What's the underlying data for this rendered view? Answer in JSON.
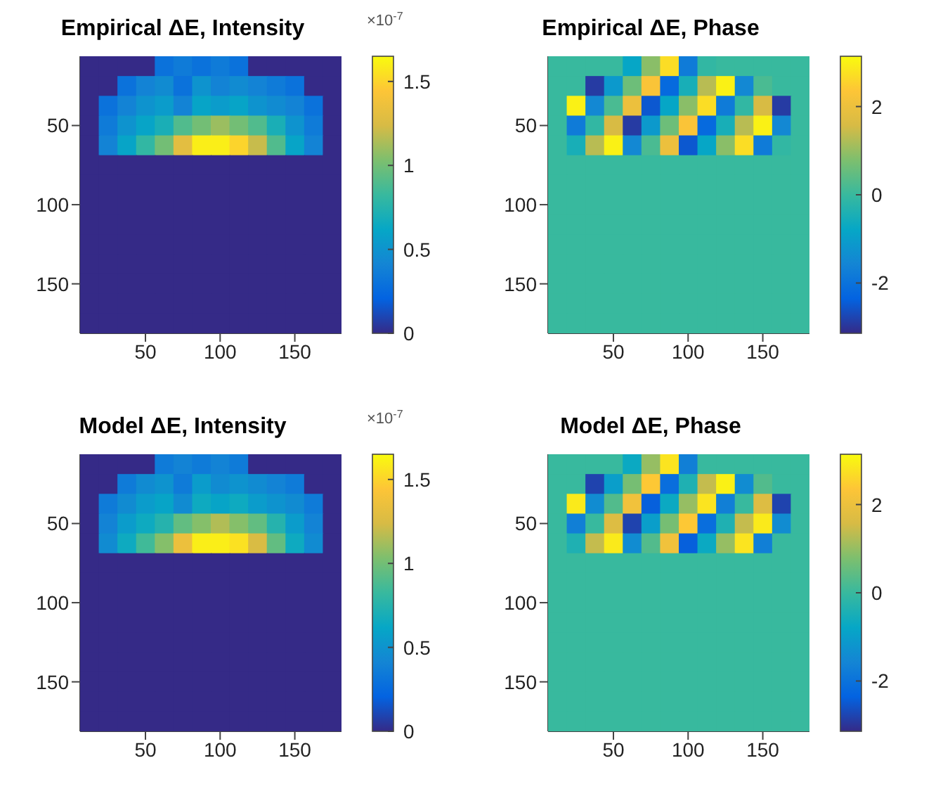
{
  "chart_data": [
    {
      "type": "heatmap",
      "title": "Empirical ΔE, Intensity",
      "clabel": "×10$^{-7}$",
      "categories": [
        null,
        null,
        null,
        "50",
        null,
        null,
        null,
        "100",
        null,
        null,
        null,
        "150",
        null,
        null
      ],
      "y_categories": [
        null,
        null,
        null,
        "50",
        null,
        null,
        null,
        "100",
        null,
        null,
        null,
        "150",
        null,
        null
      ],
      "clim": [
        0,
        1.65
      ],
      "cticks": [
        0,
        0.5,
        1,
        1.5
      ],
      "cells": [
        [
          0,
          0,
          0,
          0,
          0.3,
          0.35,
          0.3,
          0.35,
          0.3,
          0,
          0,
          0,
          0,
          0
        ],
        [
          0,
          0,
          0.3,
          0.4,
          0.45,
          0.3,
          0.5,
          0.4,
          0.45,
          0.4,
          0.35,
          0.3,
          0,
          0
        ],
        [
          0,
          0.3,
          0.4,
          0.5,
          0.55,
          0.4,
          0.6,
          0.55,
          0.6,
          0.5,
          0.45,
          0.4,
          0.3,
          0
        ],
        [
          0,
          0.35,
          0.5,
          0.6,
          0.7,
          0.9,
          1.0,
          1.1,
          1.0,
          0.9,
          0.7,
          0.5,
          0.35,
          0
        ],
        [
          0,
          0.4,
          0.6,
          0.8,
          1.0,
          1.3,
          1.6,
          1.6,
          1.5,
          1.2,
          0.9,
          0.6,
          0.4,
          0
        ],
        [
          0,
          0,
          0,
          0,
          0,
          0,
          0,
          0,
          0,
          0,
          0,
          0,
          0,
          0
        ],
        [
          0,
          0,
          0,
          0,
          0,
          0,
          0,
          0,
          0,
          0,
          0,
          0,
          0,
          0
        ],
        [
          0,
          0,
          0,
          0,
          0,
          0,
          0,
          0,
          0,
          0,
          0,
          0,
          0,
          0
        ],
        [
          0,
          0,
          0,
          0,
          0,
          0,
          0,
          0,
          0,
          0,
          0,
          0,
          0,
          0
        ],
        [
          0,
          0,
          0,
          0,
          0,
          0,
          0,
          0,
          0,
          0,
          0,
          0,
          0,
          0
        ],
        [
          0,
          0,
          0,
          0,
          0,
          0,
          0,
          0,
          0,
          0,
          0,
          0,
          0,
          0
        ],
        [
          0,
          0,
          0,
          0,
          0,
          0,
          0,
          0,
          0,
          0,
          0,
          0,
          0,
          0
        ],
        [
          0,
          0,
          0,
          0,
          0,
          0,
          0,
          0,
          0,
          0,
          0,
          0,
          0,
          0
        ],
        [
          0,
          0,
          0,
          0,
          0,
          0,
          0,
          0,
          0,
          0,
          0,
          0,
          0,
          0
        ]
      ]
    },
    {
      "type": "heatmap",
      "title": "Empirical ΔE, Phase",
      "categories": [
        null,
        null,
        null,
        "50",
        null,
        null,
        null,
        "100",
        null,
        null,
        null,
        "150",
        null,
        null
      ],
      "y_categories": [
        null,
        null,
        null,
        "50",
        null,
        null,
        null,
        "100",
        null,
        null,
        null,
        "150",
        null,
        null
      ],
      "clim": [
        -3.14,
        3.14
      ],
      "cticks": [
        -2,
        0,
        2
      ],
      "cells": [
        [
          0,
          0,
          0,
          0,
          -0.8,
          0.9,
          2.7,
          -1.8,
          -0.1,
          0,
          0,
          0,
          0,
          0
        ],
        [
          0,
          0,
          -2.9,
          -1.1,
          0.6,
          2.3,
          -2.2,
          -0.5,
          1.3,
          3.0,
          -1.5,
          0.2,
          0,
          0
        ],
        [
          0,
          3.0,
          -1.5,
          0.2,
          2.0,
          -2.5,
          -0.8,
          0.9,
          2.7,
          -1.8,
          -0.1,
          1.6,
          -2.9,
          0
        ],
        [
          0,
          -1.8,
          -0.1,
          1.6,
          -2.9,
          -1.1,
          0.6,
          2.3,
          -2.2,
          -0.5,
          1.3,
          3.0,
          -1.5,
          0
        ],
        [
          0,
          -0.5,
          1.3,
          3.0,
          -1.5,
          0.2,
          2.0,
          -2.5,
          -0.8,
          0.9,
          2.7,
          -1.8,
          -0.1,
          0
        ],
        [
          0,
          0,
          0,
          0,
          0,
          0,
          0,
          0,
          0,
          0,
          0,
          0,
          0,
          0
        ],
        [
          0,
          0,
          0,
          0,
          0,
          0,
          0,
          0,
          0,
          0,
          0,
          0,
          0,
          0
        ],
        [
          0,
          0,
          0,
          0,
          0,
          0,
          0,
          0,
          0,
          0,
          0,
          0,
          0,
          0
        ],
        [
          0,
          0,
          0,
          0,
          0,
          0,
          0,
          0,
          0,
          0,
          0,
          0,
          0,
          0
        ],
        [
          0,
          0,
          0,
          0,
          0,
          0,
          0,
          0,
          0,
          0,
          0,
          0,
          0,
          0
        ],
        [
          0,
          0,
          0,
          0,
          0,
          0,
          0,
          0,
          0,
          0,
          0,
          0,
          0,
          0
        ],
        [
          0,
          0,
          0,
          0,
          0,
          0,
          0,
          0,
          0,
          0,
          0,
          0,
          0,
          0
        ],
        [
          0,
          0,
          0,
          0,
          0,
          0,
          0,
          0,
          0,
          0,
          0,
          0,
          0,
          0
        ],
        [
          0,
          0,
          0,
          0,
          0,
          0,
          0,
          0,
          0,
          0,
          0,
          0,
          0,
          0
        ]
      ]
    },
    {
      "type": "heatmap",
      "title": "Model ΔE, Intensity",
      "clabel": "×10$^{-7}$",
      "categories": [
        null,
        null,
        null,
        "50",
        null,
        null,
        null,
        "100",
        null,
        null,
        null,
        "150",
        null,
        null
      ],
      "y_categories": [
        null,
        null,
        null,
        "50",
        null,
        null,
        null,
        "100",
        null,
        null,
        null,
        "150",
        null,
        null
      ],
      "clim": [
        0,
        1.65
      ],
      "cticks": [
        0,
        0.5,
        1,
        1.5
      ],
      "cells": [
        [
          0,
          0,
          0,
          0,
          0.35,
          0.4,
          0.35,
          0.4,
          0.35,
          0,
          0,
          0,
          0,
          0
        ],
        [
          0,
          0,
          0.35,
          0.45,
          0.5,
          0.35,
          0.55,
          0.45,
          0.5,
          0.45,
          0.4,
          0.35,
          0,
          0
        ],
        [
          0,
          0.35,
          0.45,
          0.55,
          0.6,
          0.45,
          0.65,
          0.6,
          0.65,
          0.55,
          0.5,
          0.45,
          0.35,
          0
        ],
        [
          0,
          0.4,
          0.55,
          0.65,
          0.75,
          0.95,
          1.05,
          1.15,
          1.05,
          0.95,
          0.75,
          0.55,
          0.4,
          0
        ],
        [
          0,
          0.45,
          0.65,
          0.85,
          1.05,
          1.35,
          1.6,
          1.6,
          1.55,
          1.25,
          0.95,
          0.65,
          0.45,
          0
        ],
        [
          0,
          0,
          0,
          0,
          0,
          0,
          0,
          0,
          0,
          0,
          0,
          0,
          0,
          0
        ],
        [
          0,
          0,
          0,
          0,
          0,
          0,
          0,
          0,
          0,
          0,
          0,
          0,
          0,
          0
        ],
        [
          0,
          0,
          0,
          0,
          0,
          0,
          0,
          0,
          0,
          0,
          0,
          0,
          0,
          0
        ],
        [
          0,
          0,
          0,
          0,
          0,
          0,
          0,
          0,
          0,
          0,
          0,
          0,
          0,
          0
        ],
        [
          0,
          0,
          0,
          0,
          0,
          0,
          0,
          0,
          0,
          0,
          0,
          0,
          0,
          0
        ],
        [
          0,
          0,
          0,
          0,
          0,
          0,
          0,
          0,
          0,
          0,
          0,
          0,
          0,
          0
        ],
        [
          0,
          0,
          0,
          0,
          0,
          0,
          0,
          0,
          0,
          0,
          0,
          0,
          0,
          0
        ],
        [
          0,
          0,
          0,
          0,
          0,
          0,
          0,
          0,
          0,
          0,
          0,
          0,
          0,
          0
        ],
        [
          0,
          0,
          0,
          0,
          0,
          0,
          0,
          0,
          0,
          0,
          0,
          0,
          0,
          0
        ]
      ]
    },
    {
      "type": "heatmap",
      "title": "Model ΔE, Phase",
      "categories": [
        null,
        null,
        null,
        "50",
        null,
        null,
        null,
        "100",
        null,
        null,
        null,
        "150",
        null,
        null
      ],
      "y_categories": [
        null,
        null,
        null,
        "50",
        null,
        null,
        null,
        "100",
        null,
        null,
        null,
        "150",
        null,
        null
      ],
      "clim": [
        -3.14,
        3.14
      ],
      "cticks": [
        -2,
        0,
        2
      ],
      "cells": [
        [
          0,
          0,
          0,
          0,
          -0.7,
          1.0,
          2.8,
          -1.7,
          0.0,
          0,
          0,
          0,
          0,
          0
        ],
        [
          0,
          0,
          -2.8,
          -1.0,
          0.7,
          2.4,
          -2.1,
          -0.4,
          1.4,
          3.0,
          -1.4,
          0.3,
          0,
          0
        ],
        [
          0,
          2.9,
          -1.4,
          0.3,
          2.1,
          -2.4,
          -0.7,
          1.0,
          2.8,
          -1.7,
          0.0,
          1.7,
          -2.8,
          0
        ],
        [
          0,
          -1.7,
          0.0,
          1.7,
          -2.8,
          -1.0,
          0.7,
          2.4,
          -2.1,
          -0.4,
          1.4,
          2.9,
          -1.4,
          0
        ],
        [
          0,
          -0.4,
          1.4,
          2.9,
          -1.4,
          0.3,
          2.1,
          -2.4,
          -0.7,
          1.0,
          2.8,
          -1.7,
          0.0,
          0
        ],
        [
          0,
          0,
          0,
          0,
          0,
          0,
          0,
          0,
          0,
          0,
          0,
          0,
          0,
          0
        ],
        [
          0,
          0,
          0,
          0,
          0,
          0,
          0,
          0,
          0,
          0,
          0,
          0,
          0,
          0
        ],
        [
          0,
          0,
          0,
          0,
          0,
          0,
          0,
          0,
          0,
          0,
          0,
          0,
          0,
          0
        ],
        [
          0,
          0,
          0,
          0,
          0,
          0,
          0,
          0,
          0,
          0,
          0,
          0,
          0,
          0
        ],
        [
          0,
          0,
          0,
          0,
          0,
          0,
          0,
          0,
          0,
          0,
          0,
          0,
          0,
          0
        ],
        [
          0,
          0,
          0,
          0,
          0,
          0,
          0,
          0,
          0,
          0,
          0,
          0,
          0,
          0
        ],
        [
          0,
          0,
          0,
          0,
          0,
          0,
          0,
          0,
          0,
          0,
          0,
          0,
          0,
          0
        ],
        [
          0,
          0,
          0,
          0,
          0,
          0,
          0,
          0,
          0,
          0,
          0,
          0,
          0,
          0
        ],
        [
          0,
          0,
          0,
          0,
          0,
          0,
          0,
          0,
          0,
          0,
          0,
          0,
          0,
          0
        ]
      ]
    }
  ]
}
